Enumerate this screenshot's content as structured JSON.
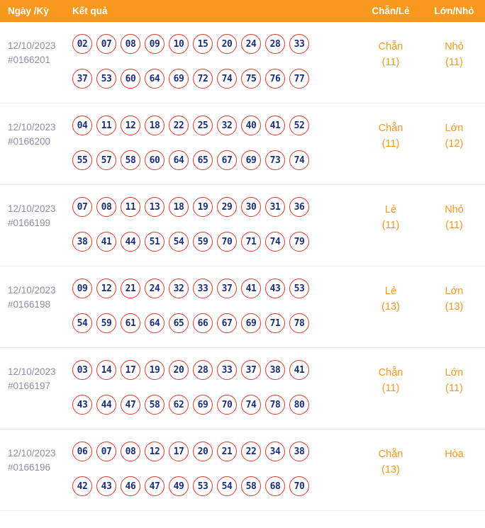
{
  "header": {
    "col_date": "Ngày /Kỳ",
    "col_result": "Kết quả",
    "col_parity": "Chẵn/Lẻ",
    "col_size": "Lớn/Nhỏ"
  },
  "rows": [
    {
      "date": "12/10/2023",
      "period": "#0166201",
      "numbers_line1": [
        "02",
        "07",
        "08",
        "09",
        "10",
        "15",
        "20",
        "24",
        "28",
        "33"
      ],
      "numbers_line2": [
        "37",
        "53",
        "60",
        "64",
        "69",
        "72",
        "74",
        "75",
        "76",
        "77"
      ],
      "parity": "Chẵn",
      "parity_count": "(11)",
      "size": "Nhỏ",
      "size_count": "(11)"
    },
    {
      "date": "12/10/2023",
      "period": "#0166200",
      "numbers_line1": [
        "04",
        "11",
        "12",
        "18",
        "22",
        "25",
        "32",
        "40",
        "41",
        "52"
      ],
      "numbers_line2": [
        "55",
        "57",
        "58",
        "60",
        "64",
        "65",
        "67",
        "69",
        "73",
        "74"
      ],
      "parity": "Chẵn",
      "parity_count": "(11)",
      "size": "Lớn",
      "size_count": "(12)"
    },
    {
      "date": "12/10/2023",
      "period": "#0166199",
      "numbers_line1": [
        "07",
        "08",
        "11",
        "13",
        "18",
        "19",
        "29",
        "30",
        "31",
        "36"
      ],
      "numbers_line2": [
        "38",
        "41",
        "44",
        "51",
        "54",
        "59",
        "70",
        "71",
        "74",
        "79"
      ],
      "parity": "Lẻ",
      "parity_count": "(11)",
      "size": "Nhỏ",
      "size_count": "(11)"
    },
    {
      "date": "12/10/2023",
      "period": "#0166198",
      "numbers_line1": [
        "09",
        "12",
        "21",
        "24",
        "32",
        "33",
        "37",
        "41",
        "43",
        "53"
      ],
      "numbers_line2": [
        "54",
        "59",
        "61",
        "64",
        "65",
        "66",
        "67",
        "69",
        "71",
        "78"
      ],
      "parity": "Lẻ",
      "parity_count": "(13)",
      "size": "Lớn",
      "size_count": "(13)"
    },
    {
      "date": "12/10/2023",
      "period": "#0166197",
      "numbers_line1": [
        "03",
        "14",
        "17",
        "19",
        "20",
        "28",
        "33",
        "37",
        "38",
        "41"
      ],
      "numbers_line2": [
        "43",
        "44",
        "47",
        "58",
        "62",
        "69",
        "70",
        "74",
        "78",
        "80"
      ],
      "parity": "Chẵn",
      "parity_count": "(11)",
      "size": "Lớn",
      "size_count": "(11)"
    },
    {
      "date": "12/10/2023",
      "period": "#0166196",
      "numbers_line1": [
        "06",
        "07",
        "08",
        "12",
        "17",
        "20",
        "21",
        "22",
        "34",
        "38"
      ],
      "numbers_line2": [
        "42",
        "43",
        "46",
        "47",
        "49",
        "53",
        "54",
        "58",
        "68",
        "70"
      ],
      "parity": "Chẵn",
      "parity_count": "(13)",
      "size": "Hòa",
      "size_count": ""
    }
  ],
  "colors": {
    "header_bg": "#F8981D",
    "accent_orange": "#F8981D",
    "ball_border": "#E0392B",
    "ball_text": "#1A2D7E",
    "date_text": "#8E8EA8",
    "row_divider": "#ECECEC"
  }
}
